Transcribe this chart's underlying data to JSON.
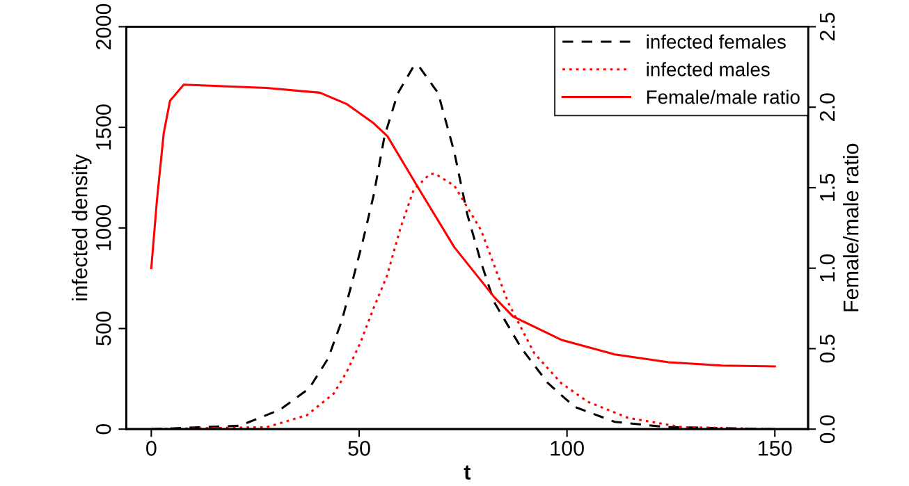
{
  "chart_data": {
    "type": "line",
    "xlabel": "t",
    "ylabel": "infected density",
    "y2label": "Female/male ratio",
    "xlim": [
      -6,
      158
    ],
    "xticks": [
      0,
      50,
      100,
      150
    ],
    "ylim": [
      0,
      2000
    ],
    "yticks": [
      0,
      500,
      1000,
      1500,
      2000
    ],
    "y2lim": [
      0,
      2.5
    ],
    "y2ticks": [
      {
        "value": 0,
        "label": "0.0"
      },
      0.5,
      {
        "value": 1,
        "label": "1.0"
      },
      1.5,
      {
        "value": 2,
        "label": "2.0"
      },
      2.5
    ],
    "grid": false,
    "legend": "top right",
    "marker": "none",
    "series": [
      {
        "name": "infected females",
        "color": "#000000",
        "line_style": "dashed",
        "x": [
          0,
          21.3,
          31,
          38,
          42.5,
          45.8,
          48.4,
          50.9,
          53.5,
          56.1,
          59.3,
          63,
          64.2,
          69,
          72.9,
          76,
          79.3,
          82.5,
          89,
          95.4,
          101.8,
          111.5,
          124.4,
          150
        ],
        "values": [
          0,
          17,
          97,
          203,
          350,
          537,
          736,
          936,
          1163,
          1456,
          1669,
          1800,
          1809,
          1670,
          1376,
          1069,
          830,
          631,
          403,
          229,
          111,
          36,
          10,
          0
        ]
      },
      {
        "name": "infected males",
        "color": "#ff0000",
        "line_style": "dotted",
        "x": [
          0,
          27.8,
          37.4,
          43.9,
          47,
          50.3,
          53.5,
          56.7,
          60,
          63.1,
          67,
          68.3,
          72.9,
          79.3,
          85.8,
          92.1,
          98.6,
          105,
          114.7,
          127.6,
          150
        ],
        "values": [
          0,
          10,
          69,
          177,
          284,
          430,
          603,
          762,
          1003,
          1189,
          1268,
          1269,
          1210,
          990,
          631,
          378,
          229,
          136,
          56,
          10,
          0
        ]
      },
      {
        "name": "Female/male ratio",
        "color": "#ff0000",
        "line_style": "solid",
        "axis": "y2",
        "x": [
          0,
          1.35,
          3,
          4.5,
          7.8,
          27.8,
          40.6,
          47,
          53.5,
          56.8,
          64.2,
          72.9,
          82.5,
          87,
          98.6,
          111.5,
          124.4,
          137.3,
          150
        ],
        "values": [
          1.0,
          1.42,
          1.84,
          2.04,
          2.14,
          2.12,
          2.09,
          2.02,
          1.9,
          1.82,
          1.5,
          1.13,
          0.82,
          0.7,
          0.555,
          0.464,
          0.416,
          0.395,
          0.39
        ]
      }
    ]
  }
}
